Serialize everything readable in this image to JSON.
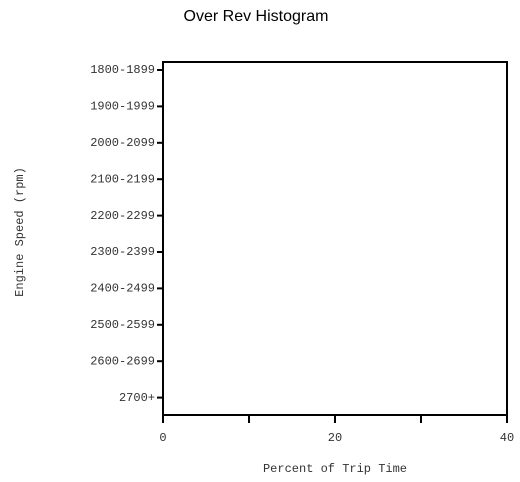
{
  "chart_data": {
    "type": "barh",
    "title": "Over Rev Histogram",
    "xlabel": "Percent of Trip Time",
    "ylabel": "Engine Speed (rpm)",
    "categories": [
      "1800-1899",
      "1900-1999",
      "2000-2099",
      "2100-2199",
      "2200-2299",
      "2300-2399",
      "2400-2499",
      "2500-2599",
      "2600-2699",
      "2700+"
    ],
    "values": [
      0,
      0,
      0,
      0,
      0,
      0,
      0,
      0,
      0,
      0
    ],
    "color": "#4472c4",
    "xlim": [
      0,
      40
    ],
    "xticks": [
      0,
      20,
      40
    ],
    "xminorticks": [
      10,
      30
    ]
  }
}
